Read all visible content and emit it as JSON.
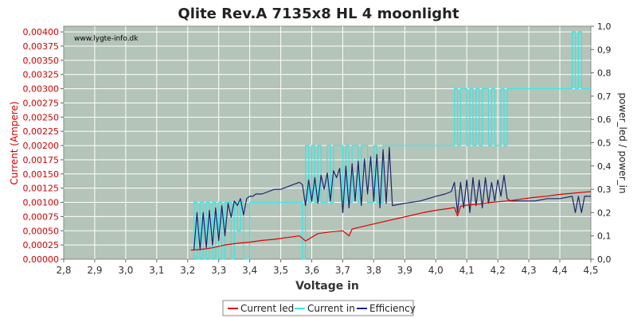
{
  "chart_data": {
    "type": "line",
    "title": "Qlite Rev.A 7135x8 HL 4 moonlight",
    "watermark": "www.lygte-info.dk",
    "xlabel": "Voltage in",
    "ylabel": "Current (Ampere)",
    "ylabel_right": "power_led / power_in",
    "xlim": [
      2.8,
      4.5
    ],
    "ylim": [
      0,
      0.0041
    ],
    "ylim_right": [
      0,
      1.0
    ],
    "grid": true,
    "legend": "bottom",
    "x_ticks": [
      "2,8",
      "2,9",
      "3,0",
      "3,1",
      "3,2",
      "3,3",
      "3,4",
      "3,5",
      "3,6",
      "3,7",
      "3,8",
      "3,9",
      "4,0",
      "4,1",
      "4,2",
      "4,3",
      "4,4",
      "4,5"
    ],
    "y_ticks": [
      "0,00000",
      "0,00025",
      "0,00050",
      "0,00075",
      "0,00100",
      "0,00125",
      "0,00150",
      "0,00175",
      "0,00200",
      "0,00225",
      "0,00250",
      "0,00275",
      "0,00300",
      "0,00325",
      "0,00350",
      "0,00375",
      "0,00400"
    ],
    "y_ticks_right": [
      "0,0",
      "0,1",
      "0,2",
      "0,3",
      "0,4",
      "0,5",
      "0,6",
      "0,7",
      "0,8",
      "0,9",
      "1,0"
    ],
    "colors": {
      "plot_bg": "#b4c4b8",
      "grid": "#ffffff",
      "current_led": "#e00000",
      "current_in": "#33eaea",
      "efficiency": "#1a2470"
    },
    "series": [
      {
        "name": "Current led",
        "axis": "left",
        "x": [
          3.21,
          3.24,
          3.28,
          3.32,
          3.36,
          3.4,
          3.44,
          3.48,
          3.52,
          3.56,
          3.58,
          3.62,
          3.66,
          3.7,
          3.72,
          3.73,
          3.76,
          3.8,
          3.84,
          3.88,
          3.92,
          3.96,
          4.0,
          4.04,
          4.06,
          4.07,
          4.08,
          4.1,
          4.12,
          4.14,
          4.16,
          4.18,
          4.2,
          4.22,
          4.24,
          4.28,
          4.32,
          4.36,
          4.4,
          4.44,
          4.48,
          4.5
        ],
        "values": [
          0.00016,
          0.00017,
          0.0002,
          0.00025,
          0.00028,
          0.0003,
          0.00033,
          0.00035,
          0.00038,
          0.00041,
          0.00032,
          0.00045,
          0.00048,
          0.0005,
          0.00041,
          0.00053,
          0.00057,
          0.00062,
          0.00067,
          0.00072,
          0.00077,
          0.00082,
          0.00086,
          0.00089,
          0.00091,
          0.00076,
          0.00093,
          0.00095,
          0.00096,
          0.00097,
          0.00099,
          0.001,
          0.00101,
          0.00102,
          0.00103,
          0.00106,
          0.00109,
          0.00111,
          0.00114,
          0.00116,
          0.00118,
          0.00119
        ]
      },
      {
        "name": "Current in",
        "axis": "left",
        "x": [
          3.22,
          3.22,
          3.23,
          3.23,
          3.24,
          3.24,
          3.25,
          3.25,
          3.26,
          3.26,
          3.27,
          3.27,
          3.28,
          3.28,
          3.29,
          3.29,
          3.3,
          3.3,
          3.31,
          3.31,
          3.32,
          3.32,
          3.34,
          3.34,
          3.35,
          3.35,
          3.36,
          3.36,
          3.37,
          3.37,
          3.38,
          3.38,
          3.4,
          3.4,
          3.41,
          3.41,
          3.57,
          3.57,
          3.58,
          3.58,
          3.59,
          3.59,
          3.6,
          3.6,
          3.61,
          3.61,
          3.62,
          3.62,
          3.63,
          3.63,
          3.65,
          3.65,
          3.66,
          3.66,
          3.67,
          3.67,
          3.7,
          3.7,
          3.71,
          3.71,
          3.72,
          3.72,
          3.73,
          3.73,
          3.75,
          3.75,
          3.76,
          3.76,
          3.78,
          3.78,
          3.8,
          3.8,
          3.81,
          3.81,
          3.83,
          3.83,
          3.85,
          3.85,
          4.06,
          4.06,
          4.07,
          4.07,
          4.08,
          4.08,
          4.1,
          4.1,
          4.11,
          4.11,
          4.12,
          4.12,
          4.13,
          4.13,
          4.14,
          4.14,
          4.15,
          4.15,
          4.17,
          4.17,
          4.18,
          4.18,
          4.19,
          4.19,
          4.21,
          4.21,
          4.22,
          4.22,
          4.23,
          4.23,
          4.44,
          4.44,
          4.45,
          4.45,
          4.46,
          4.46,
          4.47,
          4.47,
          4.48,
          4.48,
          4.5
        ],
        "values": [
          0.0,
          0.001,
          0.001,
          0.0,
          0.0,
          0.001,
          0.001,
          0.0,
          0.0,
          0.001,
          0.001,
          0.0,
          0.0,
          0.001,
          0.001,
          0.0,
          0.0,
          0.001,
          0.001,
          0.0,
          0.0,
          0.001,
          0.001,
          0.0,
          0.0,
          0.001,
          0.001,
          0.0005,
          0.0005,
          0.001,
          0.001,
          0.0,
          0.0,
          0.001,
          0.001,
          0.001,
          0.001,
          0.0,
          0.0,
          0.002,
          0.002,
          0.001,
          0.001,
          0.002,
          0.002,
          0.001,
          0.001,
          0.002,
          0.002,
          0.001,
          0.001,
          0.002,
          0.002,
          0.001,
          0.001,
          0.002,
          0.002,
          0.001,
          0.001,
          0.002,
          0.002,
          0.001,
          0.001,
          0.002,
          0.002,
          0.001,
          0.001,
          0.002,
          0.002,
          0.001,
          0.001,
          0.002,
          0.002,
          0.001,
          0.001,
          0.002,
          0.002,
          0.002,
          0.002,
          0.003,
          0.003,
          0.002,
          0.002,
          0.003,
          0.003,
          0.002,
          0.002,
          0.003,
          0.003,
          0.002,
          0.002,
          0.003,
          0.003,
          0.002,
          0.002,
          0.003,
          0.003,
          0.002,
          0.002,
          0.003,
          0.003,
          0.002,
          0.002,
          0.003,
          0.003,
          0.002,
          0.002,
          0.003,
          0.003,
          0.004,
          0.004,
          0.003,
          0.003,
          0.004,
          0.004,
          0.003,
          0.003,
          0.003,
          0.003
        ]
      },
      {
        "name": "Efficiency",
        "axis": "right",
        "x": [
          3.22,
          3.23,
          3.24,
          3.25,
          3.26,
          3.27,
          3.28,
          3.29,
          3.3,
          3.31,
          3.32,
          3.33,
          3.34,
          3.35,
          3.36,
          3.37,
          3.38,
          3.39,
          3.4,
          3.41,
          3.42,
          3.44,
          3.46,
          3.48,
          3.5,
          3.52,
          3.54,
          3.56,
          3.57,
          3.58,
          3.59,
          3.6,
          3.61,
          3.62,
          3.63,
          3.64,
          3.65,
          3.66,
          3.67,
          3.68,
          3.69,
          3.7,
          3.71,
          3.72,
          3.73,
          3.74,
          3.75,
          3.76,
          3.77,
          3.78,
          3.79,
          3.8,
          3.81,
          3.82,
          3.83,
          3.84,
          3.85,
          3.86,
          3.9,
          3.95,
          4.0,
          4.03,
          4.05,
          4.06,
          4.07,
          4.08,
          4.09,
          4.1,
          4.11,
          4.12,
          4.13,
          4.14,
          4.15,
          4.16,
          4.17,
          4.18,
          4.19,
          4.2,
          4.21,
          4.22,
          4.23,
          4.24,
          4.28,
          4.32,
          4.36,
          4.4,
          4.44,
          4.45,
          4.46,
          4.47,
          4.48,
          4.5
        ],
        "values": [
          0.04,
          0.2,
          0.04,
          0.2,
          0.05,
          0.21,
          0.06,
          0.22,
          0.08,
          0.23,
          0.1,
          0.24,
          0.18,
          0.25,
          0.23,
          0.26,
          0.19,
          0.26,
          0.27,
          0.27,
          0.28,
          0.28,
          0.29,
          0.3,
          0.3,
          0.31,
          0.32,
          0.33,
          0.32,
          0.23,
          0.34,
          0.25,
          0.35,
          0.24,
          0.36,
          0.3,
          0.37,
          0.25,
          0.38,
          0.35,
          0.39,
          0.2,
          0.4,
          0.22,
          0.41,
          0.25,
          0.42,
          0.23,
          0.43,
          0.28,
          0.44,
          0.25,
          0.45,
          0.22,
          0.47,
          0.24,
          0.48,
          0.23,
          0.24,
          0.25,
          0.27,
          0.28,
          0.29,
          0.33,
          0.2,
          0.33,
          0.22,
          0.34,
          0.2,
          0.35,
          0.23,
          0.34,
          0.22,
          0.35,
          0.24,
          0.33,
          0.25,
          0.34,
          0.27,
          0.36,
          0.26,
          0.25,
          0.25,
          0.25,
          0.26,
          0.26,
          0.27,
          0.2,
          0.27,
          0.2,
          0.27,
          0.27
        ]
      }
    ]
  }
}
